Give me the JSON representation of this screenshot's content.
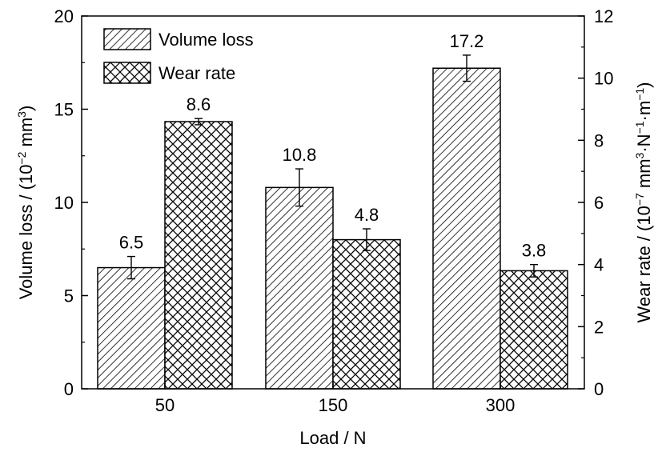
{
  "chart_data": {
    "type": "bar",
    "categories": [
      "50",
      "150",
      "300"
    ],
    "xlabel": "Load / N",
    "ylabel": {
      "prefix": "Volume loss / (10",
      "exp": "−2",
      "suffix": " mm",
      "exp2": "3",
      "close": ")"
    },
    "y2label": {
      "prefix": "Wear rate / (10",
      "exp1": "−7",
      "mid1": " mm",
      "exp2": "3",
      "mid2": "·N",
      "exp3": "−1",
      "mid3": "·m",
      "exp4": "−1",
      "close": ")"
    },
    "ylim": [
      0,
      20
    ],
    "y2lim": [
      0,
      12
    ],
    "yticks": [
      0,
      5,
      10,
      15,
      20
    ],
    "y2ticks": [
      0,
      2,
      4,
      6,
      8,
      10,
      12
    ],
    "legend_position": "top-left",
    "series": [
      {
        "name": "Volume loss",
        "axis": "left",
        "pattern": "diagonal-hatch",
        "values": [
          6.5,
          10.8,
          17.2
        ],
        "errors": [
          0.6,
          1.0,
          0.7
        ],
        "labels": [
          "6.5",
          "10.8",
          "17.2"
        ]
      },
      {
        "name": "Wear rate",
        "axis": "right",
        "pattern": "crosshatch",
        "values": [
          8.6,
          4.8,
          3.8
        ],
        "errors": [
          0.1,
          0.35,
          0.2
        ],
        "labels": [
          "8.6",
          "4.8",
          "3.8"
        ]
      }
    ]
  }
}
